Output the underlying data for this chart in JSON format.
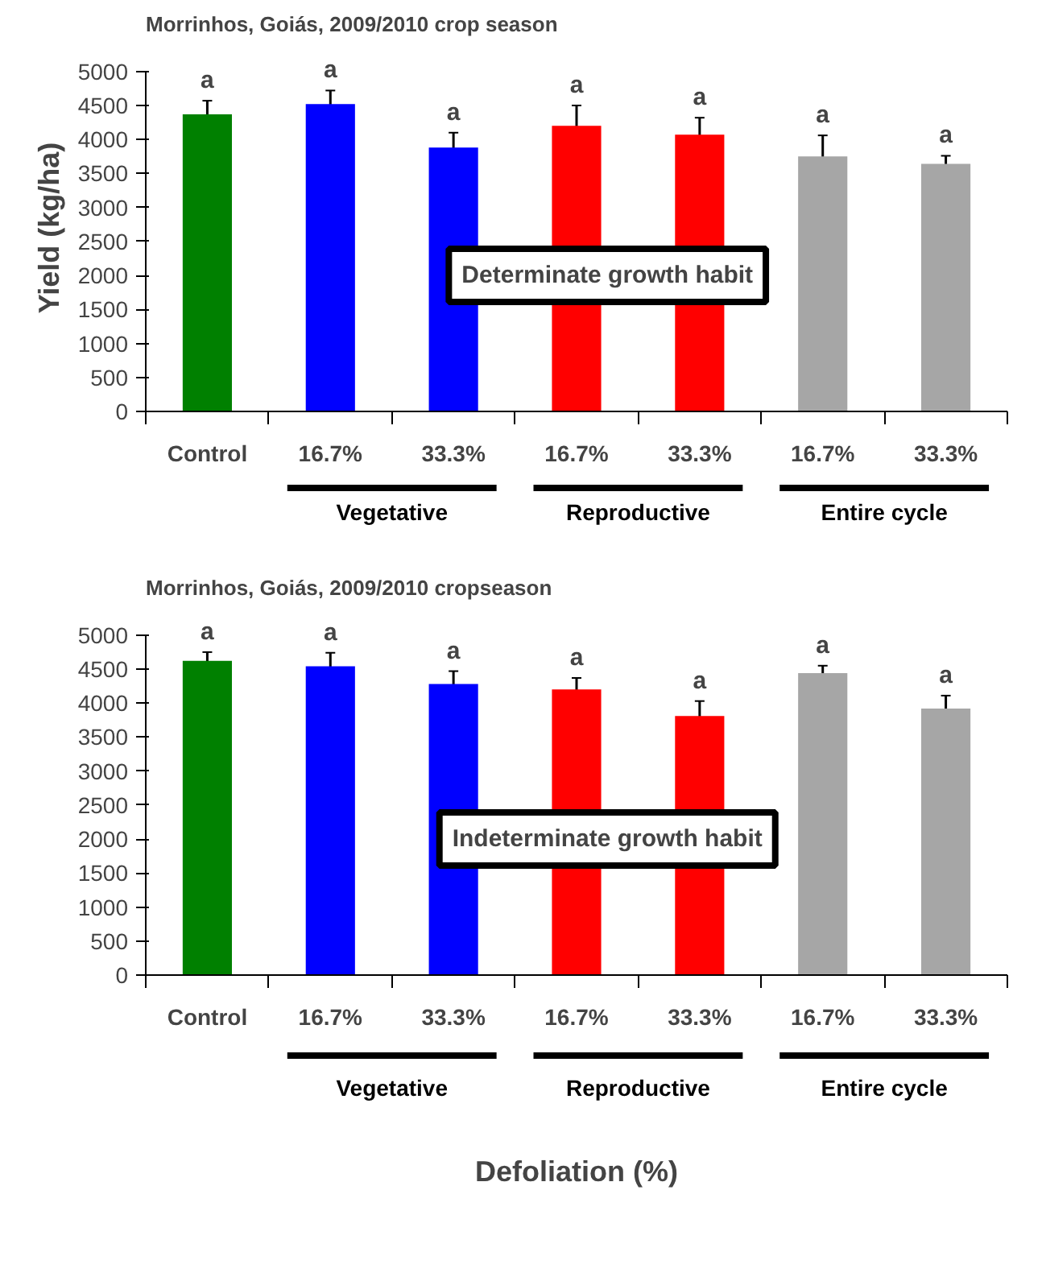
{
  "chart_data": [
    {
      "type": "bar",
      "title": "Morrinhos, Goiás, 2009/2010 crop season",
      "ylabel": "Yield (kg/ha)",
      "categories": [
        "Control",
        "16.7%",
        "33.3%",
        "16.7%",
        "33.3%",
        "16.7%",
        "33.3%"
      ],
      "values": [
        4370,
        4520,
        3880,
        4200,
        4070,
        3750,
        3640
      ],
      "errors": [
        200,
        200,
        220,
        300,
        250,
        310,
        120
      ],
      "colors": [
        "#008000",
        "#0000ff",
        "#0000ff",
        "#ff0000",
        "#ff0000",
        "#a6a6a6",
        "#a6a6a6"
      ],
      "ylim": [
        0,
        5000
      ],
      "yticks": [
        0,
        500,
        1000,
        1500,
        2000,
        2500,
        3000,
        3500,
        4000,
        4500,
        5000
      ],
      "annotations": [
        "a",
        "a",
        "a",
        "a",
        "a",
        "a",
        "a",
        "Vegetative",
        "Reproductive",
        "Entire cycle",
        "Determinate growth habit"
      ]
    },
    {
      "type": "bar",
      "title": "Morrinhos, Goiás, 2009/2010 cropseason",
      "xlabel": "Defoliation (%)",
      "categories": [
        "Control",
        "16.7%",
        "33.3%",
        "16.7%",
        "33.3%",
        "16.7%",
        "33.3%"
      ],
      "values": [
        4620,
        4540,
        4280,
        4200,
        3810,
        4440,
        3920
      ],
      "errors": [
        130,
        200,
        190,
        170,
        220,
        110,
        190
      ],
      "colors": [
        "#008000",
        "#0000ff",
        "#0000ff",
        "#ff0000",
        "#ff0000",
        "#a6a6a6",
        "#a6a6a6"
      ],
      "ylim": [
        0,
        5000
      ],
      "yticks": [
        0,
        500,
        1000,
        1500,
        2000,
        2500,
        3000,
        3500,
        4000,
        4500,
        5000
      ],
      "annotations": [
        "a",
        "a",
        "a",
        "a",
        "a",
        "a",
        "a",
        "Vegetative",
        "Reproductive",
        "Entire cycle",
        "Indeterminate growth habit"
      ]
    }
  ]
}
